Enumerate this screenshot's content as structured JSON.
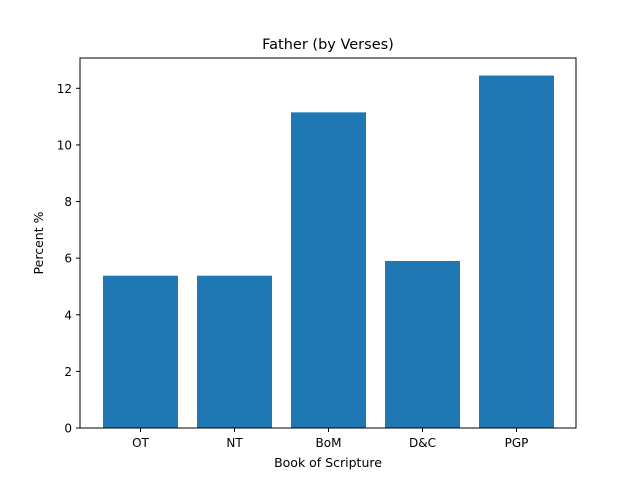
{
  "chart_data": {
    "type": "bar",
    "title": "Father (by Verses)",
    "xlabel": "Book of Scripture",
    "ylabel": "Percent %",
    "categories": [
      "OT",
      "NT",
      "BoM",
      "D&C",
      "PGP"
    ],
    "values": [
      5.38,
      5.38,
      11.15,
      5.9,
      12.45
    ],
    "ylim": [
      0,
      13.07
    ],
    "yticks": [
      0,
      2,
      4,
      6,
      8,
      10,
      12
    ],
    "bar_color": "#1f77b4",
    "grid": false,
    "legend": "none"
  }
}
